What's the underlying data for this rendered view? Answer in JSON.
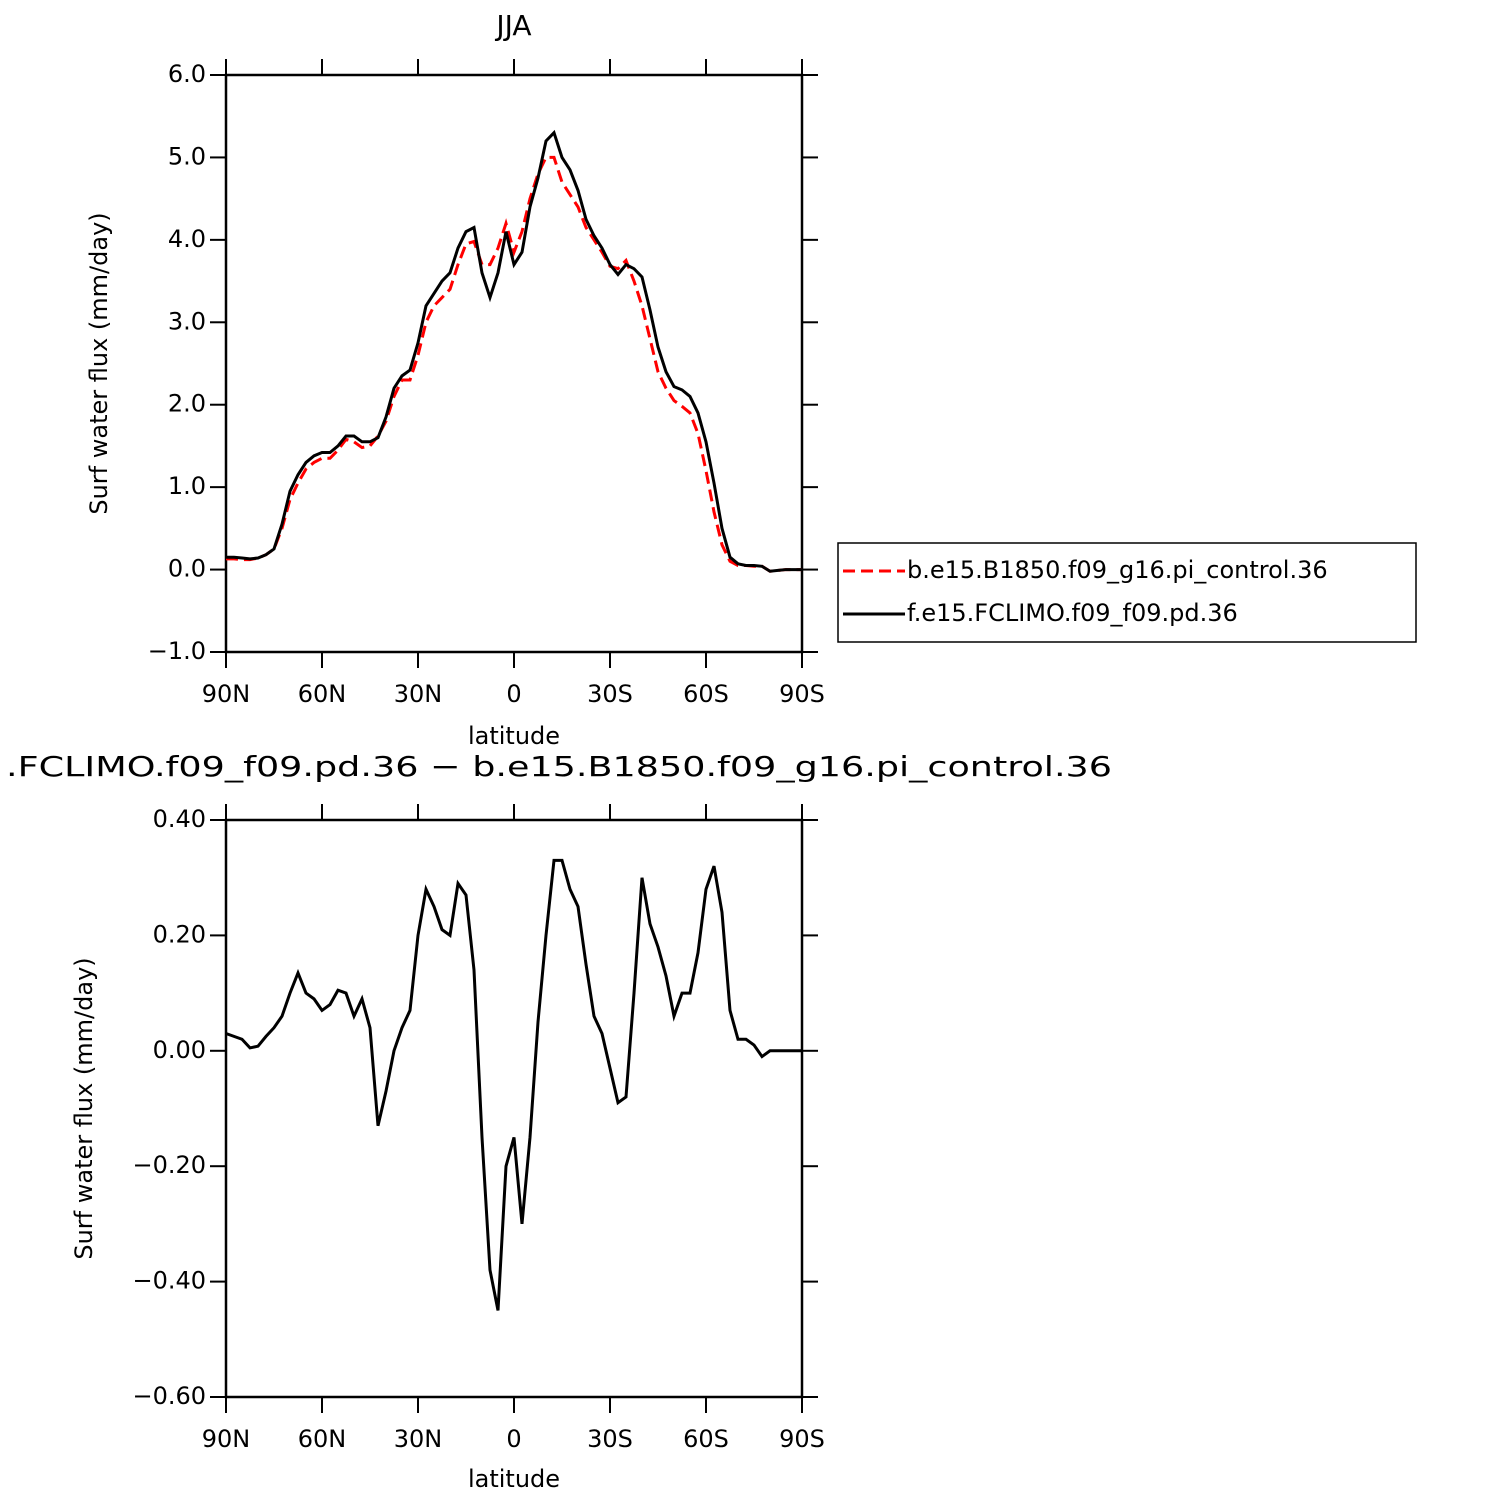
{
  "chart_data": [
    {
      "type": "line",
      "title": "JJA",
      "xlabel": "latitude",
      "ylabel": "Surf water flux (mm/day)",
      "x": [
        90,
        87.5,
        85,
        82.5,
        80,
        77.5,
        75,
        72.5,
        70,
        67.5,
        65,
        62.5,
        60,
        57.5,
        55,
        52.5,
        50,
        47.5,
        45,
        42.5,
        40,
        37.5,
        35,
        32.5,
        30,
        27.5,
        25,
        22.5,
        20,
        17.5,
        15,
        12.5,
        10,
        7.5,
        5,
        2.5,
        0,
        -2.5,
        -5,
        -7.5,
        -10,
        -12.5,
        -15,
        -17.5,
        -20,
        -22.5,
        -25,
        -27.5,
        -30,
        -32.5,
        -35,
        -37.5,
        -40,
        -42.5,
        -45,
        -47.5,
        -50,
        -52.5,
        -55,
        -57.5,
        -60,
        -62.5,
        -65,
        -67.5,
        -70,
        -72.5,
        -75,
        -77.5,
        -80,
        -82.5,
        -85,
        -87.5,
        -90
      ],
      "xlim": [
        90,
        -90
      ],
      "xticks": [
        {
          "value": 90,
          "label": "90N"
        },
        {
          "value": 60,
          "label": "60N"
        },
        {
          "value": 30,
          "label": "30N"
        },
        0,
        {
          "value": -30,
          "label": "30S"
        },
        {
          "value": -60,
          "label": "60S"
        },
        {
          "value": -90,
          "label": "90S"
        }
      ],
      "ylim": [
        -1,
        6
      ],
      "yticks": [
        {
          "value": -1,
          "label": "−1.0"
        },
        {
          "value": 0,
          "label": "0.0"
        },
        {
          "value": 1,
          "label": "1.0"
        },
        {
          "value": 2,
          "label": "2.0"
        },
        {
          "value": 3,
          "label": "3.0"
        },
        {
          "value": 4,
          "label": "4.0"
        },
        {
          "value": 5,
          "label": "5.0"
        },
        {
          "value": 6,
          "label": "6.0"
        }
      ],
      "legend": "right",
      "series": [
        {
          "name": "b.e15.B1850.f09_g16.pi_control.36",
          "color": "#ff0000",
          "line_style": "dashed",
          "values": [
            0.13,
            0.13,
            0.12,
            0.12,
            0.14,
            0.18,
            0.25,
            0.5,
            0.85,
            1.05,
            1.22,
            1.3,
            1.35,
            1.35,
            1.45,
            1.58,
            1.55,
            1.48,
            1.5,
            1.62,
            1.8,
            2.1,
            2.3,
            2.3,
            2.6,
            3.0,
            3.2,
            3.3,
            3.4,
            3.7,
            3.95,
            3.98,
            3.7,
            3.7,
            3.9,
            4.2,
            3.85,
            4.1,
            4.5,
            4.8,
            5.0,
            5.0,
            4.7,
            4.55,
            4.4,
            4.15,
            4.0,
            3.85,
            3.68,
            3.65,
            3.75,
            3.5,
            3.2,
            2.8,
            2.4,
            2.2,
            2.05,
            1.98,
            1.9,
            1.65,
            1.2,
            0.7,
            0.3,
            0.1,
            0.05,
            0.05,
            0.04,
            0.04,
            -0.02,
            -0.01,
            0,
            0,
            0
          ]
        },
        {
          "name": "f.e15.FCLIMO.f09_f09.pd.36",
          "color": "#000000",
          "line_style": "solid",
          "values": [
            0.15,
            0.15,
            0.14,
            0.13,
            0.14,
            0.18,
            0.25,
            0.55,
            0.95,
            1.15,
            1.3,
            1.38,
            1.42,
            1.42,
            1.5,
            1.62,
            1.62,
            1.55,
            1.55,
            1.6,
            1.85,
            2.2,
            2.35,
            2.42,
            2.75,
            3.2,
            3.35,
            3.5,
            3.6,
            3.9,
            4.1,
            4.15,
            3.6,
            3.3,
            3.6,
            4.1,
            3.7,
            3.85,
            4.4,
            4.75,
            5.2,
            5.3,
            5.0,
            4.85,
            4.6,
            4.25,
            4.05,
            3.9,
            3.7,
            3.58,
            3.7,
            3.65,
            3.55,
            3.15,
            2.7,
            2.4,
            2.22,
            2.18,
            2.1,
            1.9,
            1.55,
            1.05,
            0.5,
            0.15,
            0.07,
            0.05,
            0.05,
            0.04,
            -0.02,
            -0.01,
            0,
            0,
            0
          ]
        }
      ]
    },
    {
      "type": "line",
      "title": ".FCLIMO.f09_f09.pd.36 − b.e15.B1850.f09_g16.pi_control.36",
      "xlabel": "latitude",
      "ylabel": "Surf water flux (mm/day)",
      "x": [
        90,
        87.5,
        85,
        82.5,
        80,
        77.5,
        75,
        72.5,
        70,
        67.5,
        65,
        62.5,
        60,
        57.5,
        55,
        52.5,
        50,
        47.5,
        45,
        42.5,
        40,
        37.5,
        35,
        32.5,
        30,
        27.5,
        25,
        22.5,
        20,
        17.5,
        15,
        12.5,
        10,
        7.5,
        5,
        2.5,
        0,
        -2.5,
        -5,
        -7.5,
        -10,
        -12.5,
        -15,
        -17.5,
        -20,
        -22.5,
        -25,
        -27.5,
        -30,
        -32.5,
        -35,
        -37.5,
        -40,
        -42.5,
        -45,
        -47.5,
        -50,
        -52.5,
        -55,
        -57.5,
        -60,
        -62.5,
        -65,
        -67.5,
        -70,
        -72.5,
        -75,
        -77.5,
        -80,
        -82.5,
        -85,
        -87.5,
        -90
      ],
      "xlim": [
        90,
        -90
      ],
      "xticks": [
        {
          "value": 90,
          "label": "90N"
        },
        {
          "value": 60,
          "label": "60N"
        },
        {
          "value": 30,
          "label": "30N"
        },
        0,
        {
          "value": -30,
          "label": "30S"
        },
        {
          "value": -60,
          "label": "60S"
        },
        {
          "value": -90,
          "label": "90S"
        }
      ],
      "ylim": [
        -0.6,
        0.4
      ],
      "yticks": [
        {
          "value": -0.6,
          "label": "−0.60"
        },
        {
          "value": -0.4,
          "label": "−0.40"
        },
        {
          "value": -0.2,
          "label": "−0.20"
        },
        {
          "value": 0,
          "label": "0.00"
        },
        {
          "value": 0.2,
          "label": "0.20"
        },
        {
          "value": 0.4,
          "label": "0.40"
        }
      ],
      "series": [
        {
          "color": "#000000",
          "line_style": "solid",
          "values": [
            0.03,
            0.025,
            0.02,
            0.005,
            0.008,
            0.025,
            0.04,
            0.06,
            0.1,
            0.135,
            0.1,
            0.09,
            0.07,
            0.08,
            0.105,
            0.1,
            0.06,
            0.09,
            0.04,
            -0.13,
            -0.07,
            0.0,
            0.04,
            0.07,
            0.2,
            0.28,
            0.25,
            0.21,
            0.2,
            0.29,
            0.27,
            0.14,
            -0.15,
            -0.38,
            -0.45,
            -0.2,
            -0.15,
            -0.3,
            -0.15,
            0.05,
            0.2,
            0.33,
            0.33,
            0.28,
            0.25,
            0.15,
            0.06,
            0.03,
            -0.03,
            -0.09,
            -0.08,
            0.1,
            0.3,
            0.22,
            0.18,
            0.13,
            0.06,
            0.1,
            0.1,
            0.17,
            0.28,
            0.32,
            0.24,
            0.07,
            0.02,
            0.02,
            0.01,
            -0.01,
            0,
            0,
            0,
            0,
            0
          ]
        }
      ]
    }
  ]
}
